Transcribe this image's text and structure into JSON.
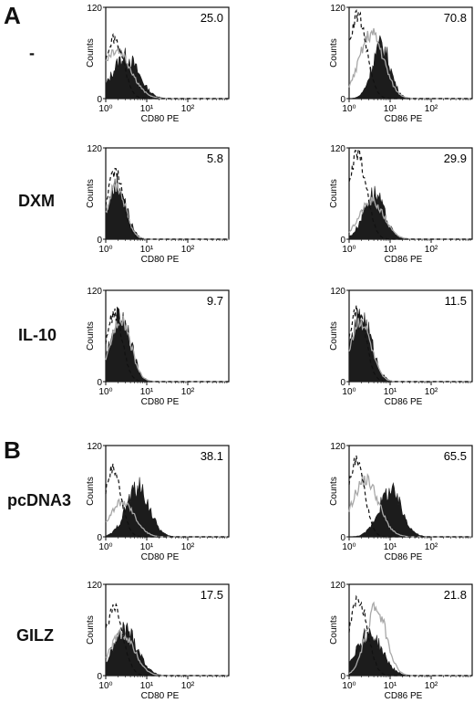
{
  "figure": {
    "panels": [
      {
        "letter": "A"
      },
      {
        "letter": "B"
      }
    ],
    "rows": [
      {
        "label": "-"
      },
      {
        "label": "DXM"
      },
      {
        "label": "IL-10"
      },
      {
        "label": "pcDNA3"
      },
      {
        "label": "GILZ"
      }
    ]
  },
  "chart_data": [
    {
      "type": "area",
      "row": "-",
      "ylabel": "Counts",
      "xlabel": "CD80 PE",
      "annotation": "25.0",
      "x_scale": "log",
      "xlim": [
        1,
        1000
      ],
      "ylim": [
        0,
        120
      ],
      "yticks": [
        0,
        120
      ],
      "xticks": [
        "10⁰",
        "10¹",
        "10²"
      ],
      "series": {
        "filled": {
          "peak": 3.0,
          "width": 0.32,
          "height": 55
        },
        "gray": {
          "peak": 1.8,
          "width": 0.35,
          "height": 65
        },
        "dashed": {
          "peak": 1.6,
          "width": 0.22,
          "height": 80
        }
      }
    },
    {
      "type": "area",
      "row": "-",
      "ylabel": "Counts",
      "xlabel": "CD86 PE",
      "annotation": "70.8",
      "x_scale": "log",
      "xlim": [
        1,
        1000
      ],
      "ylim": [
        0,
        120
      ],
      "yticks": [
        0,
        120
      ],
      "xticks": [
        "10⁰",
        "10¹",
        "10²"
      ],
      "series": {
        "filled": {
          "peak": 6.0,
          "width": 0.22,
          "height": 70
        },
        "gray": {
          "peak": 3.5,
          "width": 0.3,
          "height": 85
        },
        "dashed": {
          "peak": 1.6,
          "width": 0.22,
          "height": 110
        }
      }
    },
    {
      "type": "area",
      "row": "DXM",
      "ylabel": "Counts",
      "xlabel": "CD80 PE",
      "annotation": "5.8",
      "x_scale": "log",
      "xlim": [
        1,
        1000
      ],
      "ylim": [
        0,
        120
      ],
      "yticks": [
        0,
        120
      ],
      "xticks": [
        "10⁰",
        "10¹",
        "10²"
      ],
      "series": {
        "filled": {
          "peak": 1.9,
          "width": 0.22,
          "height": 72
        },
        "gray": {
          "peak": 1.8,
          "width": 0.22,
          "height": 70
        },
        "dashed": {
          "peak": 1.7,
          "width": 0.2,
          "height": 88
        }
      }
    },
    {
      "type": "area",
      "row": "DXM",
      "ylabel": "Counts",
      "xlabel": "CD86 PE",
      "annotation": "29.9",
      "x_scale": "log",
      "xlim": [
        1,
        1000
      ],
      "ylim": [
        0,
        120
      ],
      "yticks": [
        0,
        120
      ],
      "xticks": [
        "10⁰",
        "10¹",
        "10²"
      ],
      "series": {
        "filled": {
          "peak": 4.0,
          "width": 0.25,
          "height": 60
        },
        "gray": {
          "peak": 3.5,
          "width": 0.3,
          "height": 50
        },
        "dashed": {
          "peak": 1.6,
          "width": 0.22,
          "height": 110
        }
      }
    },
    {
      "type": "area",
      "row": "IL-10",
      "ylabel": "Counts",
      "xlabel": "CD80 PE",
      "annotation": "9.7",
      "x_scale": "log",
      "xlim": [
        1,
        1000
      ],
      "ylim": [
        0,
        120
      ],
      "yticks": [
        0,
        120
      ],
      "xticks": [
        "10⁰",
        "10¹",
        "10²"
      ],
      "series": {
        "filled": {
          "peak": 2.3,
          "width": 0.24,
          "height": 90
        },
        "gray": {
          "peak": 2.3,
          "width": 0.24,
          "height": 85
        },
        "dashed": {
          "peak": 1.6,
          "width": 0.2,
          "height": 88
        }
      }
    },
    {
      "type": "area",
      "row": "IL-10",
      "ylabel": "Counts",
      "xlabel": "CD86 PE",
      "annotation": "11.5",
      "x_scale": "log",
      "xlim": [
        1,
        1000
      ],
      "ylim": [
        0,
        120
      ],
      "yticks": [
        0,
        120
      ],
      "xticks": [
        "10⁰",
        "10¹",
        "10²"
      ],
      "series": {
        "filled": {
          "peak": 2.0,
          "width": 0.25,
          "height": 85
        },
        "gray": {
          "peak": 1.9,
          "width": 0.25,
          "height": 80
        },
        "dashed": {
          "peak": 1.6,
          "width": 0.2,
          "height": 95
        }
      }
    },
    {
      "type": "area",
      "row": "pcDNA3",
      "ylabel": "Counts",
      "xlabel": "CD80 PE",
      "annotation": "38.1",
      "x_scale": "log",
      "xlim": [
        1,
        1000
      ],
      "ylim": [
        0,
        120
      ],
      "yticks": [
        0,
        120
      ],
      "xticks": [
        "10⁰",
        "10¹",
        "10²"
      ],
      "series": {
        "filled": {
          "peak": 6.0,
          "width": 0.28,
          "height": 65
        },
        "gray": {
          "peak": 2.5,
          "width": 0.3,
          "height": 45
        },
        "dashed": {
          "peak": 1.5,
          "width": 0.2,
          "height": 90
        }
      }
    },
    {
      "type": "area",
      "row": "pcDNA3",
      "ylabel": "Counts",
      "xlabel": "CD86 PE",
      "annotation": "65.5",
      "x_scale": "log",
      "xlim": [
        1,
        1000
      ],
      "ylim": [
        0,
        120
      ],
      "yticks": [
        0,
        120
      ],
      "xticks": [
        "10⁰",
        "10¹",
        "10²"
      ],
      "series": {
        "filled": {
          "peak": 10.0,
          "width": 0.28,
          "height": 60
        },
        "gray": {
          "peak": 2.5,
          "width": 0.32,
          "height": 75
        },
        "dashed": {
          "peak": 1.5,
          "width": 0.2,
          "height": 100
        }
      }
    },
    {
      "type": "area",
      "row": "GILZ",
      "ylabel": "Counts",
      "xlabel": "CD80 PE",
      "annotation": "17.5",
      "x_scale": "log",
      "xlim": [
        1,
        1000
      ],
      "ylim": [
        0,
        120
      ],
      "yticks": [
        0,
        120
      ],
      "xticks": [
        "10⁰",
        "10¹",
        "10²"
      ],
      "series": {
        "filled": {
          "peak": 3.0,
          "width": 0.3,
          "height": 60
        },
        "gray": {
          "peak": 2.5,
          "width": 0.3,
          "height": 55
        },
        "dashed": {
          "peak": 1.6,
          "width": 0.22,
          "height": 88
        }
      }
    },
    {
      "type": "area",
      "row": "GILZ",
      "ylabel": "Counts",
      "xlabel": "CD86 PE",
      "annotation": "21.8",
      "x_scale": "log",
      "xlim": [
        1,
        1000
      ],
      "ylim": [
        0,
        120
      ],
      "yticks": [
        0,
        120
      ],
      "xticks": [
        "10⁰",
        "10¹",
        "10²"
      ],
      "series": {
        "filled": {
          "peak": 3.0,
          "width": 0.32,
          "height": 55
        },
        "gray": {
          "peak": 4.5,
          "width": 0.25,
          "height": 90
        },
        "dashed": {
          "peak": 1.7,
          "width": 0.22,
          "height": 100
        }
      }
    }
  ]
}
